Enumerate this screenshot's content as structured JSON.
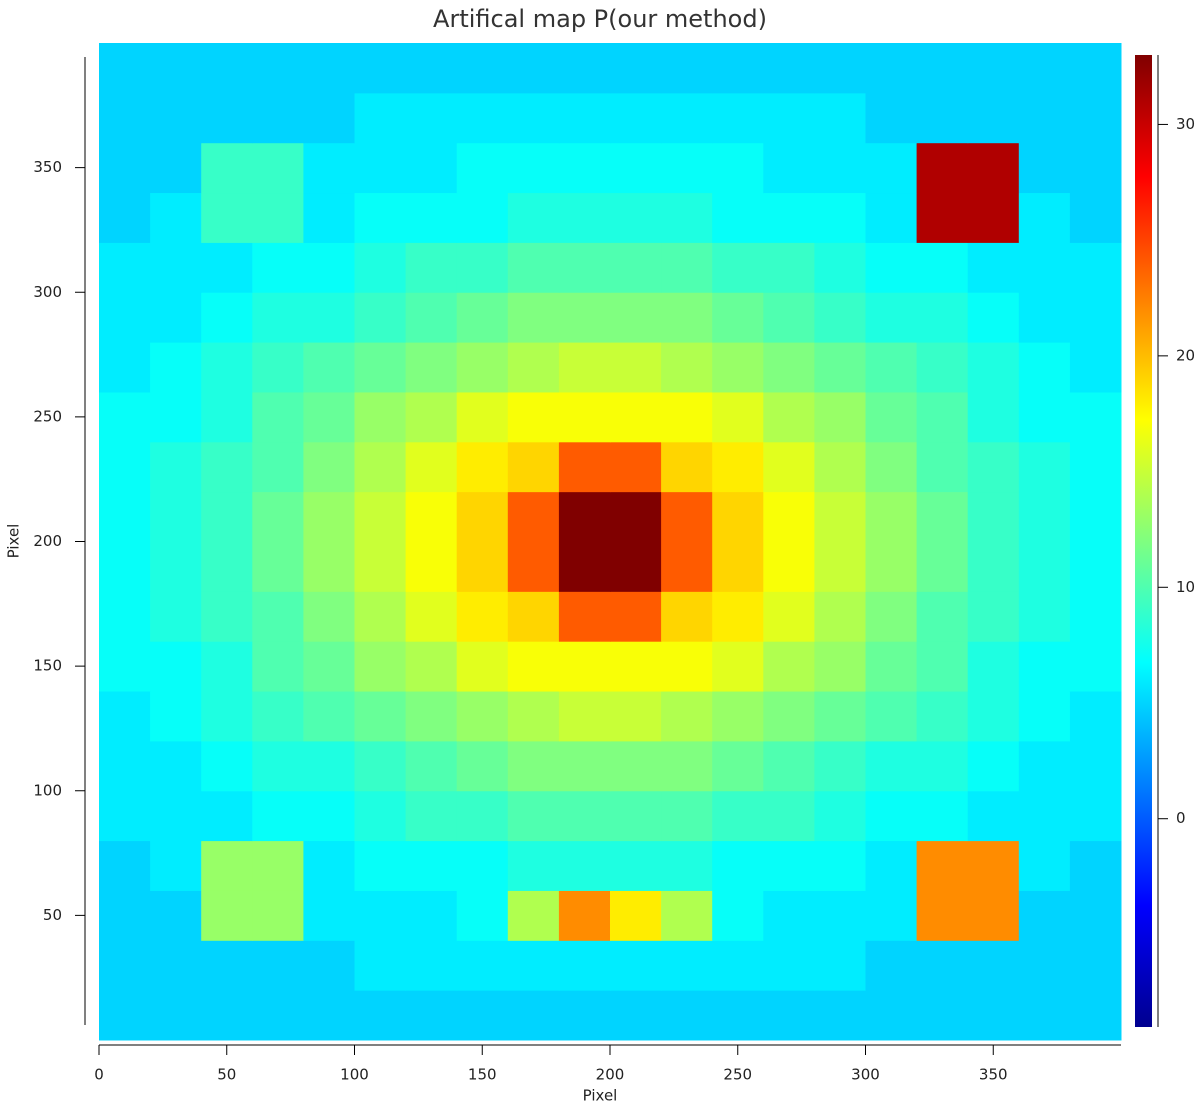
{
  "chart_data": {
    "type": "heatmap",
    "title": "Artifical map P(our method)",
    "x_label": "Pixel",
    "y_label": "Pixel",
    "xlim": [
      0,
      400
    ],
    "ylim": [
      0,
      400
    ],
    "xticks": [
      0,
      50,
      100,
      150,
      200,
      250,
      300,
      350
    ],
    "yticks": [
      50,
      100,
      150,
      200,
      250,
      300,
      350
    ],
    "colormap": "jet",
    "clim": [
      -9,
      33
    ],
    "colorbar_ticks": [
      0,
      10,
      20,
      30
    ],
    "z": [
      [
        5,
        5,
        5,
        5,
        5,
        5,
        5,
        5,
        5,
        5,
        5,
        5,
        5,
        5,
        5,
        5,
        5,
        5,
        5,
        5
      ],
      [
        5,
        5,
        5,
        5,
        5,
        6,
        6,
        6,
        6,
        6,
        6,
        6,
        6,
        6,
        6,
        5,
        5,
        5,
        5,
        5
      ],
      [
        5,
        5,
        13,
        13,
        6,
        6,
        6,
        7,
        14,
        22,
        18,
        14,
        7,
        6,
        6,
        6,
        22,
        22,
        5,
        5
      ],
      [
        5,
        6,
        13,
        13,
        6,
        7,
        7,
        7,
        8,
        8,
        8,
        8,
        7,
        7,
        7,
        6,
        22,
        22,
        6,
        5
      ],
      [
        6,
        6,
        6,
        7,
        7,
        8,
        9,
        9,
        10,
        10,
        10,
        10,
        9,
        9,
        8,
        7,
        7,
        6,
        6,
        6
      ],
      [
        6,
        6,
        7,
        8,
        8,
        9,
        10,
        11,
        12,
        12,
        12,
        12,
        11,
        10,
        9,
        8,
        8,
        7,
        6,
        6
      ],
      [
        6,
        7,
        8,
        9,
        10,
        11,
        12,
        13,
        14,
        15,
        15,
        14,
        13,
        12,
        11,
        10,
        9,
        8,
        7,
        6
      ],
      [
        7,
        7,
        8,
        10,
        11,
        13,
        14,
        16,
        17,
        17,
        17,
        17,
        16,
        14,
        13,
        11,
        10,
        8,
        7,
        7
      ],
      [
        7,
        8,
        9,
        10,
        12,
        14,
        16,
        18,
        19,
        24,
        24,
        19,
        18,
        16,
        14,
        12,
        10,
        9,
        8,
        7
      ],
      [
        7,
        8,
        9,
        11,
        13,
        15,
        17,
        19,
        24,
        33,
        33,
        24,
        19,
        17,
        15,
        13,
        11,
        9,
        8,
        7
      ],
      [
        7,
        8,
        9,
        11,
        13,
        15,
        17,
        19,
        24,
        33,
        33,
        24,
        19,
        17,
        15,
        13,
        11,
        9,
        8,
        7
      ],
      [
        7,
        8,
        9,
        10,
        12,
        14,
        16,
        18,
        19,
        24,
        24,
        19,
        18,
        16,
        14,
        12,
        10,
        9,
        8,
        7
      ],
      [
        7,
        7,
        8,
        10,
        11,
        13,
        14,
        16,
        17,
        17,
        17,
        17,
        16,
        14,
        13,
        11,
        10,
        8,
        7,
        7
      ],
      [
        6,
        7,
        8,
        9,
        10,
        11,
        12,
        13,
        14,
        15,
        15,
        14,
        13,
        12,
        11,
        10,
        9,
        8,
        7,
        6
      ],
      [
        6,
        6,
        7,
        8,
        8,
        9,
        10,
        11,
        12,
        12,
        12,
        12,
        11,
        10,
        9,
        8,
        8,
        7,
        6,
        6
      ],
      [
        6,
        6,
        6,
        7,
        7,
        8,
        9,
        9,
        10,
        10,
        10,
        10,
        9,
        9,
        8,
        7,
        7,
        6,
        6,
        6
      ],
      [
        5,
        6,
        9,
        9,
        6,
        7,
        7,
        7,
        8,
        8,
        8,
        8,
        7,
        7,
        7,
        6,
        31,
        31,
        6,
        5
      ],
      [
        5,
        5,
        9,
        9,
        6,
        6,
        6,
        7,
        7,
        7,
        7,
        7,
        7,
        6,
        6,
        6,
        31,
        31,
        5,
        5
      ],
      [
        5,
        5,
        5,
        5,
        5,
        6,
        6,
        6,
        6,
        6,
        6,
        6,
        6,
        6,
        6,
        5,
        5,
        5,
        5,
        5
      ],
      [
        5,
        5,
        5,
        5,
        5,
        5,
        5,
        5,
        5,
        5,
        5,
        5,
        5,
        5,
        5,
        5,
        5,
        5,
        5,
        5
      ]
    ]
  }
}
